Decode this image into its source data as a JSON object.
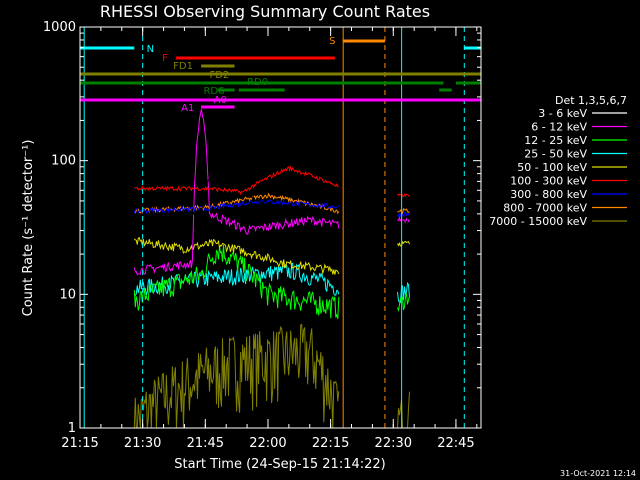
{
  "chart_data": {
    "type": "line",
    "title": "RHESSI Observing Summary Count Rates",
    "xlabel": "Start Time (24-Sep-15 21:14:22)",
    "ylabel": "Count Rate (s⁻¹ detector⁻¹)",
    "yscale": "log",
    "ylim": [
      1,
      1000
    ],
    "xlim_minutes": [
      21.25,
      22.85
    ],
    "x_tick_labels": [
      "21:15",
      "21:30",
      "21:45",
      "22:00",
      "22:15",
      "22:30",
      "22:45"
    ],
    "y_tick_labels": [
      "1",
      "10",
      "100",
      "1000"
    ],
    "legend_title": "Det 1,3,5,6,7",
    "legend_position": "right",
    "footer_date": "31-Oct-2021 12:14",
    "series": [
      {
        "name": "3 - 6 keV",
        "color": "#000000"
      },
      {
        "name": "6 - 12 keV",
        "color": "#ff00ff"
      },
      {
        "name": "12 - 25 keV",
        "color": "#00ff00"
      },
      {
        "name": "25 - 50 keV",
        "color": "#00ffff"
      },
      {
        "name": "50 - 100 keV",
        "color": "#dddd00"
      },
      {
        "name": "100 - 300 keV",
        "color": "#ff0000"
      },
      {
        "name": "300 - 800 keV",
        "color": "#0000ff"
      },
      {
        "name": "800 - 7000 keV",
        "color": "#ff8800"
      },
      {
        "name": "7000 - 15000 keV",
        "color": "#808000"
      }
    ],
    "flags": [
      {
        "label": "N",
        "color": "#00ffff"
      },
      {
        "label": "S",
        "color": "#ff8800"
      },
      {
        "label": "F",
        "color": "#ff0000"
      },
      {
        "label": "FD1",
        "color": "#808000"
      },
      {
        "label": "FD2",
        "color": "#808000"
      },
      {
        "label": "RD0",
        "color": "#008000"
      },
      {
        "label": "RD6",
        "color": "#008000"
      },
      {
        "label": "A0",
        "color": "#ff00ff"
      },
      {
        "label": "A1",
        "color": "#ff00ff"
      }
    ]
  }
}
